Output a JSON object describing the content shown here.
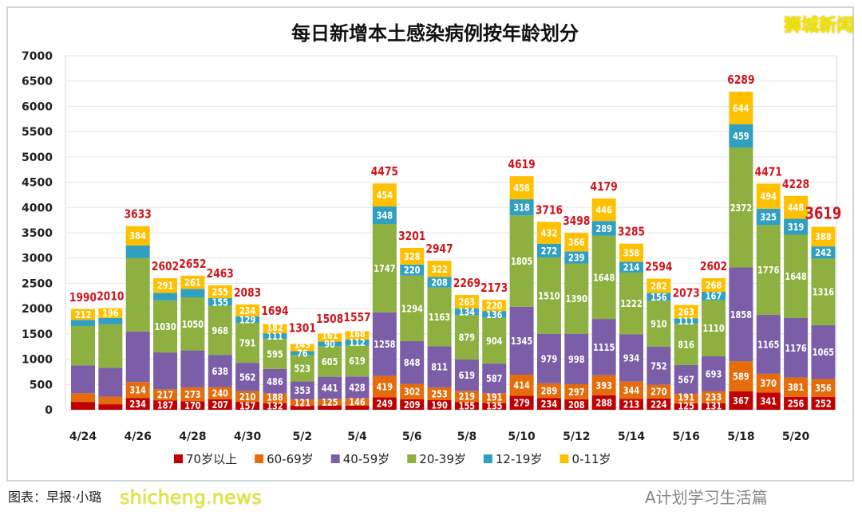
{
  "chart_data": {
    "type": "bar",
    "stacked": true,
    "title": "每日新增本土感染病例按年龄划分",
    "xlabel": "",
    "ylabel": "",
    "ylim": [
      0,
      7000
    ],
    "yticks": [
      0,
      500,
      1000,
      1500,
      2000,
      2500,
      3000,
      3500,
      4000,
      4500,
      5000,
      5500,
      6000,
      6500,
      7000
    ],
    "grid": true,
    "legend_position": "bottom",
    "categories": [
      "4/24",
      "4/25",
      "4/26",
      "4/27",
      "4/28",
      "4/29",
      "4/30",
      "5/1",
      "5/2",
      "5/3",
      "5/4",
      "5/5",
      "5/6",
      "5/7",
      "5/8",
      "5/9",
      "5/10",
      "5/11",
      "5/12",
      "5/13",
      "5/14",
      "5/15",
      "5/16",
      "5/17",
      "5/18",
      "5/19",
      "5/20",
      "5/21"
    ],
    "xtick_labels": [
      "4/24",
      "",
      "4/26",
      "",
      "4/28",
      "",
      "4/30",
      "",
      "5/2",
      "",
      "5/4",
      "",
      "5/6",
      "",
      "5/8",
      "",
      "5/10",
      "",
      "5/12",
      "",
      "5/14",
      "",
      "5/16",
      "",
      "5/18",
      "",
      "5/20",
      ""
    ],
    "totals": [
      1990,
      2010,
      3633,
      2602,
      2652,
      2463,
      2083,
      1694,
      1301,
      1508,
      1557,
      4475,
      3201,
      2947,
      2269,
      2173,
      4619,
      3716,
      3498,
      4179,
      3285,
      2594,
      2073,
      2602,
      6289,
      4471,
      4228,
      3619
    ],
    "series": [
      {
        "name": "70岁以上",
        "color": "#c00000",
        "values": [
          156,
          109,
          234,
          187,
          170,
          207,
          157,
          132,
          85,
          86,
          84,
          249,
          209,
          190,
          155,
          135,
          279,
          234,
          208,
          288,
          213,
          224,
          125,
          131,
          367,
          341,
          256,
          252
        ]
      },
      {
        "name": "60-69岁",
        "color": "#e46c0a",
        "values": [
          170,
          150,
          314,
          217,
          273,
          240,
          210,
          188,
          121,
          125,
          146,
          419,
          302,
          253,
          219,
          191,
          414,
          289,
          297,
          393,
          344,
          270,
          191,
          233,
          589,
          370,
          381,
          356
        ]
      },
      {
        "name": "40-59岁",
        "color": "#7b5ea7",
        "values": [
          550,
          570,
          1000,
          730,
          730,
          638,
          562,
          486,
          353,
          441,
          428,
          1258,
          848,
          811,
          619,
          587,
          1345,
          979,
          998,
          1115,
          934,
          752,
          567,
          693,
          1858,
          1165,
          1176,
          1065
        ]
      },
      {
        "name": "20-39岁",
        "color": "#8db040",
        "values": [
          780,
          860,
          1451,
          1030,
          1050,
          968,
          791,
          595,
          523,
          605,
          619,
          1747,
          1294,
          1163,
          879,
          904,
          1805,
          1510,
          1390,
          1648,
          1222,
          910,
          816,
          1110,
          2372,
          1776,
          1648,
          1316
        ]
      },
      {
        "name": "12-19岁",
        "color": "#31a0c0",
        "values": [
          122,
          125,
          250,
          147,
          168,
          155,
          129,
          111,
          76,
          90,
          112,
          348,
          220,
          208,
          134,
          136,
          318,
          272,
          239,
          289,
          214,
          156,
          111,
          167,
          459,
          325,
          319,
          242
        ]
      },
      {
        "name": "0-11岁",
        "color": "#ffc000",
        "values": [
          212,
          196,
          384,
          291,
          261,
          255,
          234,
          182,
          143,
          161,
          168,
          454,
          328,
          322,
          263,
          220,
          458,
          432,
          366,
          446,
          358,
          282,
          263,
          268,
          644,
          494,
          448,
          388
        ]
      }
    ],
    "labeled": [
      [
        0,
        0,
        0,
        0,
        0,
        1
      ],
      [
        0,
        0,
        0,
        0,
        0,
        1
      ],
      [
        1,
        1,
        0,
        0,
        0,
        1
      ],
      [
        1,
        1,
        0,
        1,
        0,
        1
      ],
      [
        1,
        1,
        0,
        1,
        0,
        1
      ],
      [
        1,
        1,
        1,
        1,
        1,
        1
      ],
      [
        1,
        1,
        1,
        1,
        1,
        1
      ],
      [
        1,
        1,
        1,
        1,
        1,
        1
      ],
      [
        0,
        1,
        1,
        1,
        1,
        1
      ],
      [
        0,
        1,
        1,
        1,
        1,
        1
      ],
      [
        0,
        1,
        1,
        1,
        1,
        1
      ],
      [
        1,
        1,
        1,
        1,
        1,
        1
      ],
      [
        1,
        1,
        1,
        1,
        1,
        1
      ],
      [
        1,
        1,
        1,
        1,
        1,
        1
      ],
      [
        1,
        1,
        1,
        1,
        1,
        1
      ],
      [
        1,
        1,
        1,
        1,
        1,
        1
      ],
      [
        1,
        1,
        1,
        1,
        1,
        1
      ],
      [
        1,
        1,
        1,
        1,
        1,
        1
      ],
      [
        1,
        1,
        1,
        1,
        1,
        1
      ],
      [
        1,
        1,
        1,
        1,
        1,
        1
      ],
      [
        1,
        1,
        1,
        1,
        1,
        1
      ],
      [
        1,
        1,
        1,
        1,
        1,
        1
      ],
      [
        1,
        1,
        1,
        1,
        1,
        1
      ],
      [
        1,
        1,
        1,
        1,
        1,
        1
      ],
      [
        1,
        1,
        1,
        1,
        1,
        1
      ],
      [
        1,
        1,
        1,
        1,
        1,
        1
      ],
      [
        1,
        1,
        1,
        1,
        1,
        1
      ],
      [
        1,
        1,
        1,
        1,
        1,
        1
      ]
    ]
  },
  "watermarks": {
    "top_right": "狮城新闻",
    "bottom_left": "shicheng.news",
    "bottom_right": "A计划学习生活篇",
    "credit": "图表：早报·小璐"
  }
}
